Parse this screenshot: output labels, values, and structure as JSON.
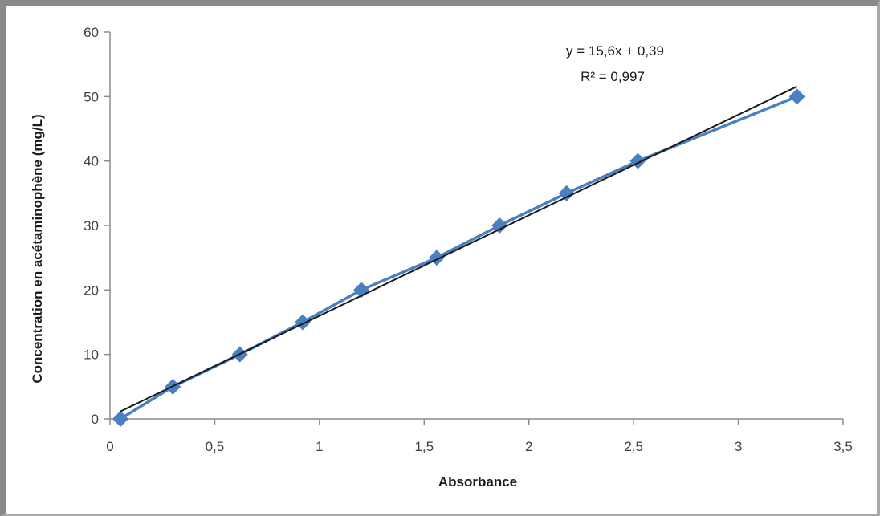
{
  "chart_data": {
    "type": "scatter",
    "title": "",
    "xlabel": "Absorbance",
    "ylabel": "Concentration en acétaminophène (mg/L)",
    "xlim": [
      0,
      3.5
    ],
    "ylim": [
      0,
      60
    ],
    "x_ticks": [
      {
        "value": 0,
        "label": "0"
      },
      {
        "value": 0.5,
        "label": "0,5"
      },
      {
        "value": 1,
        "label": "1"
      },
      {
        "value": 1.5,
        "label": "1,5"
      },
      {
        "value": 2,
        "label": "2"
      },
      {
        "value": 2.5,
        "label": "2,5"
      },
      {
        "value": 3,
        "label": "3"
      },
      {
        "value": 3.5,
        "label": "3,5"
      }
    ],
    "y_ticks": [
      {
        "value": 0,
        "label": "0"
      },
      {
        "value": 10,
        "label": "10"
      },
      {
        "value": 20,
        "label": "20"
      },
      {
        "value": 30,
        "label": "30"
      },
      {
        "value": 40,
        "label": "40"
      },
      {
        "value": 50,
        "label": "50"
      },
      {
        "value": 60,
        "label": "60"
      }
    ],
    "grid": false,
    "legend": "none",
    "series": [
      {
        "color": "#4a7fc1",
        "marker": "diamond",
        "x": [
          0.05,
          0.3,
          0.62,
          0.92,
          1.2,
          1.56,
          1.86,
          2.18,
          2.52,
          3.28
        ],
        "y": [
          0,
          5,
          10,
          15,
          20,
          25,
          30,
          35,
          40,
          50
        ]
      }
    ],
    "trendline": {
      "type": "linear",
      "color": "#1a1a1a",
      "slope": 15.6,
      "intercept": 0.39,
      "x_range": [
        0.05,
        3.28
      ],
      "equation_label": "y = 15,6x + 0,39",
      "r2_label": "R² = 0,997"
    }
  }
}
